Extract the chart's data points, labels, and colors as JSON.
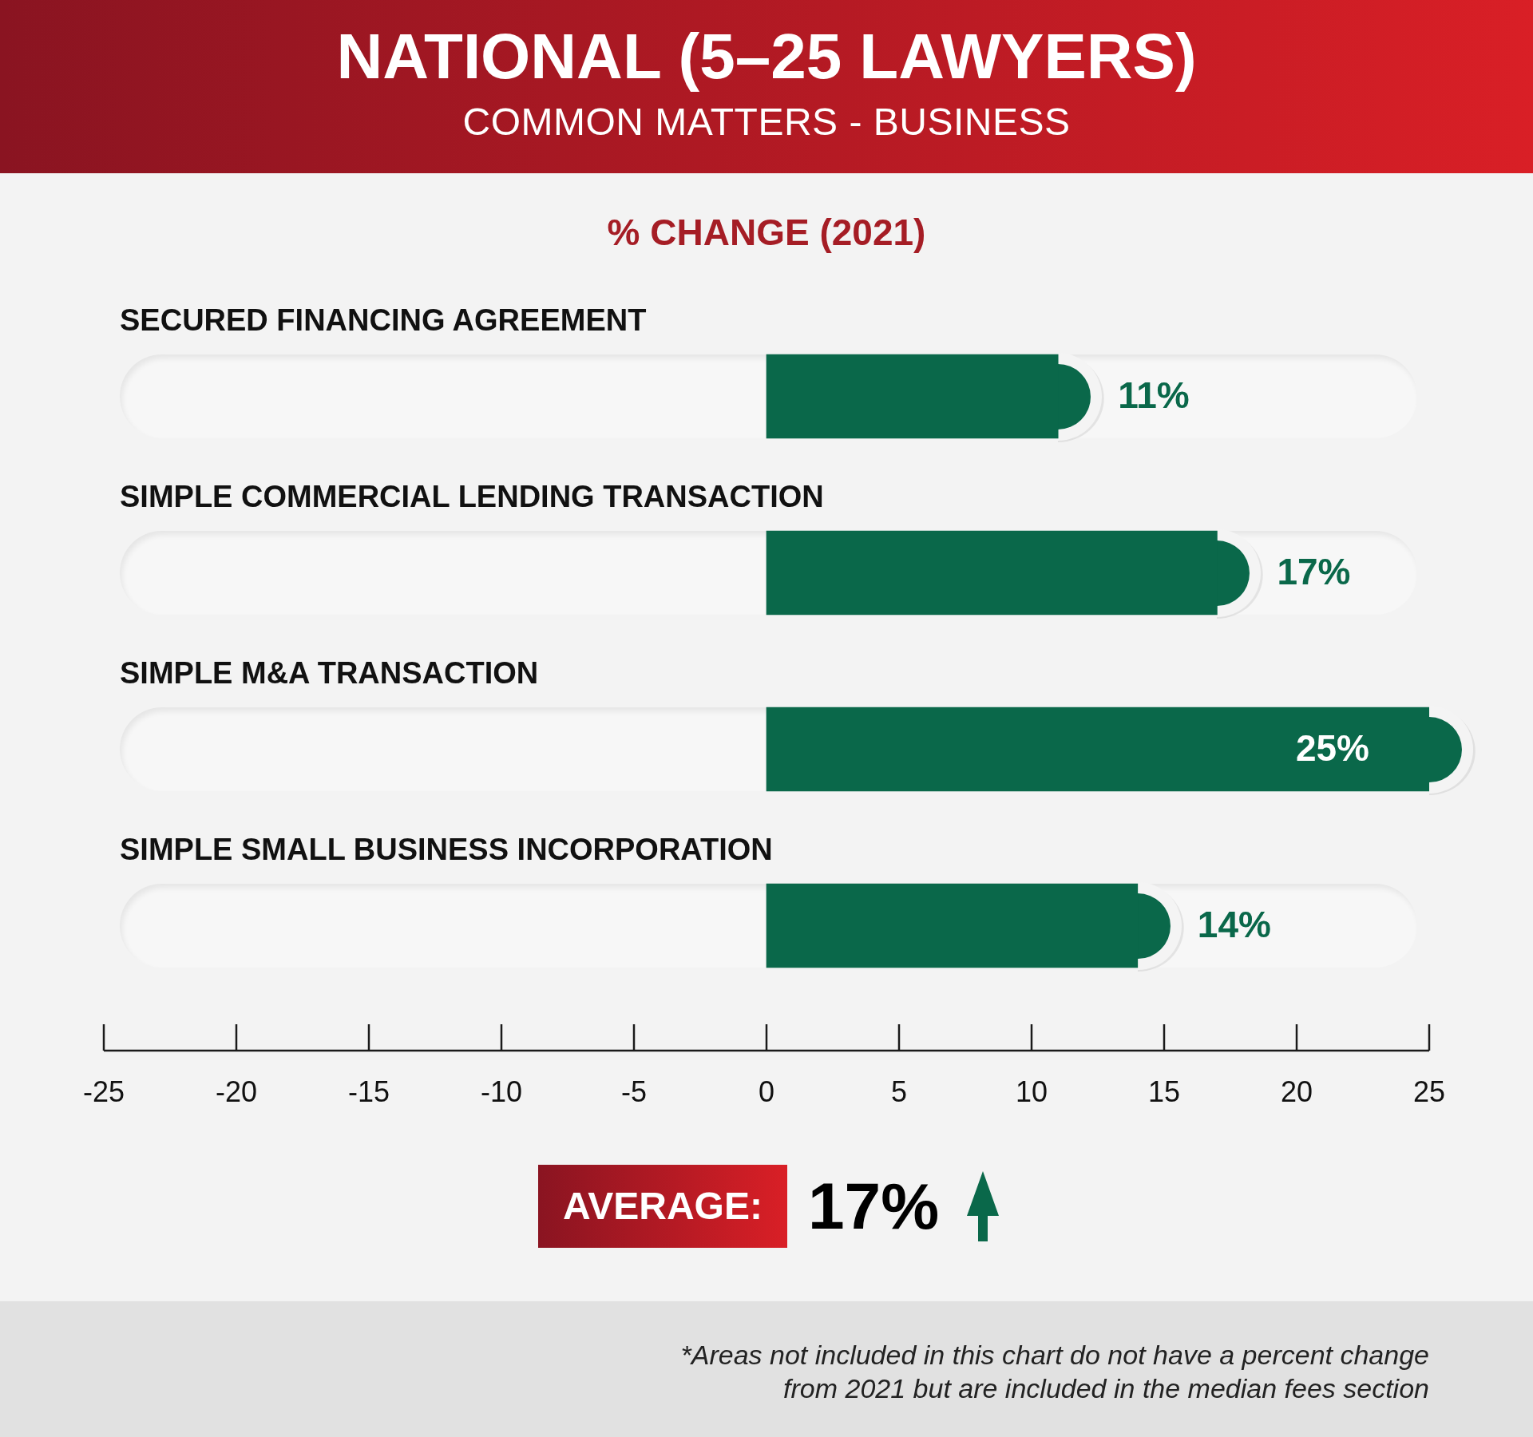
{
  "chart_data": {
    "type": "bar",
    "orientation": "horizontal",
    "title": "NATIONAL (5–25 LAWYERS)",
    "subtitle": "COMMON MATTERS - BUSINESS",
    "categories": [
      "SECURED FINANCING AGREEMENT",
      "SIMPLE COMMERCIAL LENDING TRANSACTION",
      "SIMPLE M&A TRANSACTION",
      "SIMPLE SMALL BUSINESS INCORPORATION"
    ],
    "values": [
      11,
      17,
      25,
      14
    ],
    "value_labels": [
      "11%",
      "17%",
      "25%",
      "14%"
    ],
    "color": "#0a684a",
    "xlim": [
      -25,
      25
    ],
    "xticks": [
      -25,
      -20,
      -15,
      -10,
      -5,
      0,
      5,
      10,
      15,
      20,
      25
    ],
    "annotations": [
      "% CHANGE (2021)",
      "AVERAGE:",
      "17%",
      "*Areas not included in this chart do not have a percent change from 2021 but are included in the median fees section"
    ]
  }
}
